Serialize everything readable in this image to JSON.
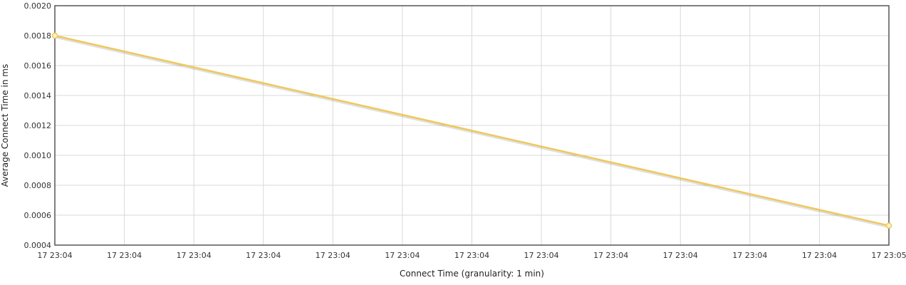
{
  "chart_data": {
    "type": "line",
    "title": "",
    "xlabel": "Connect Time (granularity: 1 min)",
    "ylabel": "Average Connect Time in ms",
    "x_tick_labels": [
      "17 23:04",
      "17 23:04",
      "17 23:04",
      "17 23:04",
      "17 23:04",
      "17 23:04",
      "17 23:04",
      "17 23:04",
      "17 23:04",
      "17 23:04",
      "17 23:04",
      "17 23:04",
      "17 23:05"
    ],
    "y_tick_labels": [
      "0.0004",
      "0.0006",
      "0.0008",
      "0.0010",
      "0.0012",
      "0.0014",
      "0.0016",
      "0.0018",
      "0.0020"
    ],
    "ylim": [
      0.0004,
      0.002
    ],
    "x_range": [
      "17 23:04",
      "17 23:05"
    ],
    "grid": true,
    "legend": "none",
    "series": [
      {
        "color": "#f0c85a",
        "points": [
          {
            "x": "17 23:04",
            "y": 0.0018
          },
          {
            "x": "17 23:05",
            "y": 0.00053
          }
        ]
      }
    ]
  }
}
